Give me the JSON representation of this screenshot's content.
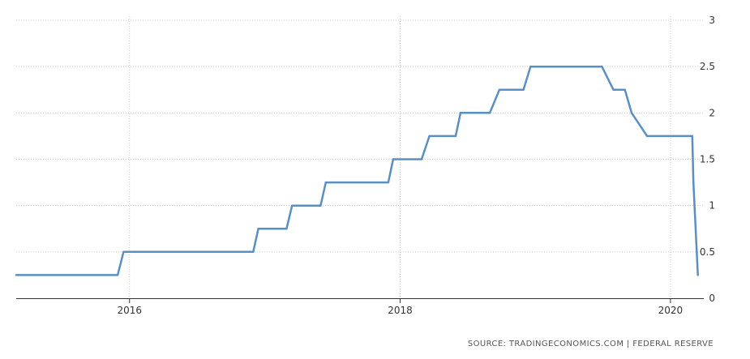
{
  "chart_data": {
    "type": "line",
    "title": "",
    "xlabel": "",
    "ylabel": "",
    "xlim": [
      "2015-03-01",
      "2020-03-31"
    ],
    "ylim": [
      0,
      3
    ],
    "y_ticks": [
      "0",
      "0.5",
      "1",
      "1.5",
      "2",
      "2.5",
      "3"
    ],
    "x_ticks": [
      {
        "label": "2016",
        "date": "2016-01-01"
      },
      {
        "label": "2018",
        "date": "2018-01-01"
      },
      {
        "label": "2020",
        "date": "2020-01-01"
      }
    ],
    "grid": true,
    "y_axis_side": "right",
    "series": [
      {
        "color": "#5b8fc2",
        "points": [
          {
            "date": "2015-03-01",
            "value": 0.25
          },
          {
            "date": "2015-11-30",
            "value": 0.25
          },
          {
            "date": "2015-12-16",
            "value": 0.5
          },
          {
            "date": "2016-11-30",
            "value": 0.5
          },
          {
            "date": "2016-12-14",
            "value": 0.75
          },
          {
            "date": "2017-02-28",
            "value": 0.75
          },
          {
            "date": "2017-03-15",
            "value": 1.0
          },
          {
            "date": "2017-05-31",
            "value": 1.0
          },
          {
            "date": "2017-06-14",
            "value": 1.25
          },
          {
            "date": "2017-11-30",
            "value": 1.25
          },
          {
            "date": "2017-12-13",
            "value": 1.5
          },
          {
            "date": "2018-02-28",
            "value": 1.5
          },
          {
            "date": "2018-03-21",
            "value": 1.75
          },
          {
            "date": "2018-05-31",
            "value": 1.75
          },
          {
            "date": "2018-06-13",
            "value": 2.0
          },
          {
            "date": "2018-08-31",
            "value": 2.0
          },
          {
            "date": "2018-09-26",
            "value": 2.25
          },
          {
            "date": "2018-11-30",
            "value": 2.25
          },
          {
            "date": "2018-12-19",
            "value": 2.5
          },
          {
            "date": "2019-06-30",
            "value": 2.5
          },
          {
            "date": "2019-07-31",
            "value": 2.25
          },
          {
            "date": "2019-08-31",
            "value": 2.25
          },
          {
            "date": "2019-09-18",
            "value": 2.0
          },
          {
            "date": "2019-10-30",
            "value": 1.75
          },
          {
            "date": "2020-02-29",
            "value": 1.75
          },
          {
            "date": "2020-03-03",
            "value": 1.25
          },
          {
            "date": "2020-03-15",
            "value": 0.25
          }
        ]
      }
    ]
  },
  "source": "SOURCE: TRADINGECONOMICS.COM | FEDERAL RESERVE"
}
